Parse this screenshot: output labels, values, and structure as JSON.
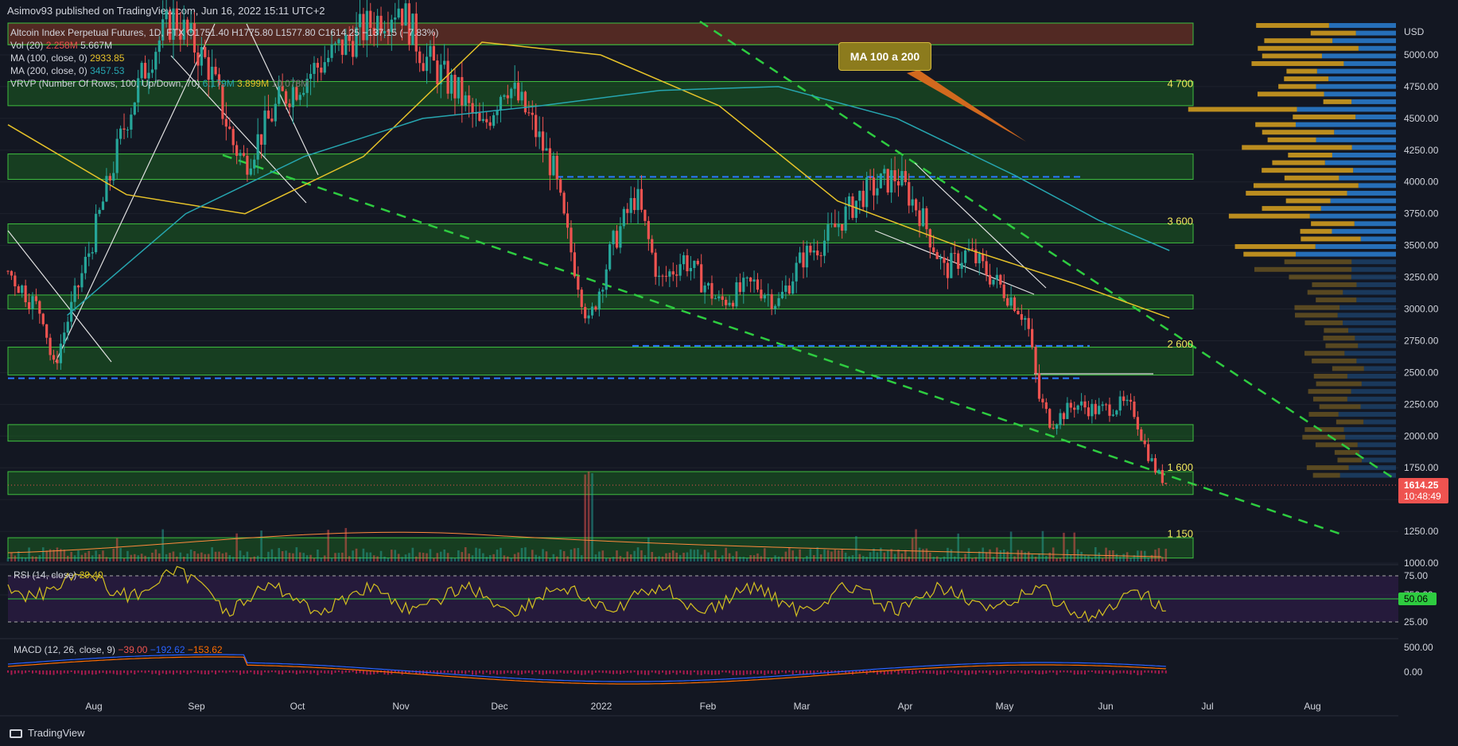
{
  "header": {
    "published": "Asimov93 published on TradingView.com, Jun 16, 2022 15:11 UTC+2"
  },
  "legend": {
    "symbol": "Altcoin Index Perpetual Futures, 1D, FTX  O1751.40  H1775.80  L1577.80  C1614.25  −137.15 (−7.83%)",
    "vol": "Vol (20)",
    "vol_v1": "2.258M",
    "vol_v2": "5.667M",
    "ma100": "MA (100, close, 0)",
    "ma100_v": "2933.85",
    "ma200": "MA (200, close, 0)",
    "ma200_v": "3457.53",
    "vrvp": "VRVP (Number Of Rows, 100, Up/Down, 70)",
    "vrvp_v1": "6.179M",
    "vrvp_v2": "3.899M",
    "vrvp_v3": "10.078M"
  },
  "rsi": {
    "label": "RSI (14, close)",
    "value": "29.40",
    "scale": [
      "75.00",
      "50.06",
      "25.00"
    ]
  },
  "macd": {
    "label": "MACD (12, 26, close, 9)",
    "v1": "−39.00",
    "v2": "−192.62",
    "v3": "−153.62",
    "scale": [
      "500.00",
      "0.00"
    ]
  },
  "annotation": {
    "callout": "MA 100 a 200"
  },
  "footer": {
    "brand": "TradingView"
  },
  "colors": {
    "bg": "#131722",
    "up": "#26a69a",
    "down": "#ef5350",
    "zone": "#1b5e20",
    "ma100": "#e6c229",
    "ma200": "#26a6b0",
    "rsi": "#d4c020",
    "macd": "#2962ff",
    "signal": "#ff6d00"
  },
  "chart_data": {
    "type": "candlestick",
    "title": "Altcoin Index Perpetual Futures, 1D, FTX",
    "price_axis": {
      "currency": "USD",
      "ticks": [
        5000,
        4750,
        4500,
        4250,
        4000,
        3750,
        3500,
        3250,
        3000,
        2750,
        2500,
        2250,
        2000,
        1750,
        1500,
        1250,
        1000,
        750
      ],
      "range": [
        700,
        5300
      ]
    },
    "time_axis": {
      "labels": [
        "Aug",
        "Sep",
        "Oct",
        "Nov",
        "Dec",
        "2022",
        "Feb",
        "Mar",
        "Apr",
        "May",
        "Jun",
        "Jul",
        "Aug"
      ]
    },
    "last_price": {
      "value": "1614.25",
      "countdown": "10:48:49"
    },
    "level_labels": [
      "4 700",
      "3 600",
      "2 600",
      "1 600",
      "1 150"
    ],
    "support_zones": [
      [
        5080,
        5250
      ],
      [
        4600,
        4790
      ],
      [
        4020,
        4220
      ],
      [
        3520,
        3670
      ],
      [
        3000,
        3110
      ],
      [
        2480,
        2700
      ],
      [
        1960,
        2090
      ],
      [
        1540,
        1720
      ],
      [
        1040,
        1200
      ]
    ],
    "price_path": [
      [
        0,
        3300
      ],
      [
        0.03,
        2950
      ],
      [
        0.038,
        2520
      ],
      [
        0.05,
        2900
      ],
      [
        0.07,
        3500
      ],
      [
        0.085,
        4000
      ],
      [
        0.1,
        4500
      ],
      [
        0.12,
        5000
      ],
      [
        0.14,
        5300
      ],
      [
        0.17,
        4900
      ],
      [
        0.19,
        4300
      ],
      [
        0.2,
        4150
      ],
      [
        0.23,
        4650
      ],
      [
        0.26,
        4900
      ],
      [
        0.3,
        5200
      ],
      [
        0.33,
        5400
      ],
      [
        0.35,
        5000
      ],
      [
        0.38,
        4700
      ],
      [
        0.4,
        4400
      ],
      [
        0.42,
        4800
      ],
      [
        0.44,
        4500
      ],
      [
        0.46,
        4100
      ],
      [
        0.47,
        3650
      ],
      [
        0.49,
        2880
      ],
      [
        0.51,
        3500
      ],
      [
        0.53,
        3900
      ],
      [
        0.55,
        3200
      ],
      [
        0.57,
        3400
      ],
      [
        0.6,
        3050
      ],
      [
        0.63,
        3200
      ],
      [
        0.65,
        3050
      ],
      [
        0.67,
        3400
      ],
      [
        0.69,
        3550
      ],
      [
        0.72,
        3900
      ],
      [
        0.75,
        4050
      ],
      [
        0.77,
        3750
      ],
      [
        0.79,
        3300
      ],
      [
        0.81,
        3450
      ],
      [
        0.83,
        3250
      ],
      [
        0.85,
        3050
      ],
      [
        0.86,
        2900
      ],
      [
        0.87,
        2300
      ],
      [
        0.88,
        2100
      ],
      [
        0.9,
        2250
      ],
      [
        0.92,
        2200
      ],
      [
        0.94,
        2250
      ],
      [
        0.95,
        2200
      ],
      [
        0.96,
        1900
      ],
      [
        0.97,
        1700
      ],
      [
        0.98,
        1614
      ]
    ],
    "ma100_path": [
      [
        0,
        4450
      ],
      [
        0.1,
        3900
      ],
      [
        0.2,
        3750
      ],
      [
        0.3,
        4200
      ],
      [
        0.4,
        5100
      ],
      [
        0.5,
        5000
      ],
      [
        0.6,
        4600
      ],
      [
        0.7,
        3850
      ],
      [
        0.8,
        3500
      ],
      [
        0.9,
        3200
      ],
      [
        0.98,
        2930
      ]
    ],
    "ma200_path": [
      [
        0.05,
        2950
      ],
      [
        0.15,
        3750
      ],
      [
        0.25,
        4200
      ],
      [
        0.35,
        4500
      ],
      [
        0.45,
        4600
      ],
      [
        0.55,
        4720
      ],
      [
        0.65,
        4750
      ],
      [
        0.75,
        4500
      ],
      [
        0.85,
        4050
      ],
      [
        0.92,
        3700
      ],
      [
        0.98,
        3460
      ]
    ]
  }
}
